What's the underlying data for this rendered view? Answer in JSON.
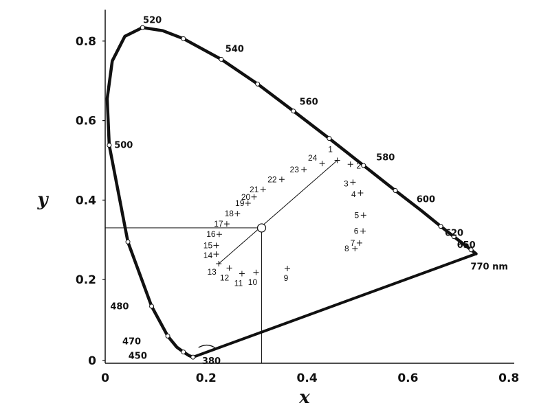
{
  "chart_data": {
    "type": "scatter",
    "title": "",
    "xlabel": "x",
    "ylabel": "y",
    "xlim": [
      0,
      0.8
    ],
    "ylim": [
      0,
      0.8
    ],
    "x_ticks": [
      "0",
      "0.2",
      "0.4",
      "0.6",
      "0.8"
    ],
    "y_ticks": [
      "0",
      "0.2",
      "0.4",
      "0.6",
      "0.8"
    ],
    "grid": false,
    "spectral_locus": [
      {
        "x": 0.174,
        "y": 0.005
      },
      {
        "x": 0.166,
        "y": 0.009
      },
      {
        "x": 0.155,
        "y": 0.018
      },
      {
        "x": 0.142,
        "y": 0.03
      },
      {
        "x": 0.124,
        "y": 0.058
      },
      {
        "x": 0.092,
        "y": 0.133
      },
      {
        "x": 0.045,
        "y": 0.295
      },
      {
        "x": 0.008,
        "y": 0.538
      },
      {
        "x": 0.004,
        "y": 0.655
      },
      {
        "x": 0.014,
        "y": 0.75
      },
      {
        "x": 0.039,
        "y": 0.812
      },
      {
        "x": 0.074,
        "y": 0.834
      },
      {
        "x": 0.114,
        "y": 0.826
      },
      {
        "x": 0.155,
        "y": 0.806
      },
      {
        "x": 0.23,
        "y": 0.754
      },
      {
        "x": 0.302,
        "y": 0.692
      },
      {
        "x": 0.373,
        "y": 0.624
      },
      {
        "x": 0.444,
        "y": 0.555
      },
      {
        "x": 0.512,
        "y": 0.487
      },
      {
        "x": 0.575,
        "y": 0.424
      },
      {
        "x": 0.627,
        "y": 0.373
      },
      {
        "x": 0.665,
        "y": 0.334
      },
      {
        "x": 0.691,
        "y": 0.308
      },
      {
        "x": 0.715,
        "y": 0.285
      },
      {
        "x": 0.725,
        "y": 0.275
      },
      {
        "x": 0.735,
        "y": 0.265
      }
    ],
    "locus_markers": [
      {
        "x": 0.174,
        "y": 0.005
      },
      {
        "x": 0.155,
        "y": 0.018
      },
      {
        "x": 0.124,
        "y": 0.058
      },
      {
        "x": 0.092,
        "y": 0.133
      },
      {
        "x": 0.045,
        "y": 0.295
      },
      {
        "x": 0.008,
        "y": 0.538
      },
      {
        "x": 0.074,
        "y": 0.834
      },
      {
        "x": 0.155,
        "y": 0.806
      },
      {
        "x": 0.23,
        "y": 0.754
      },
      {
        "x": 0.302,
        "y": 0.692
      },
      {
        "x": 0.373,
        "y": 0.624
      },
      {
        "x": 0.444,
        "y": 0.555
      },
      {
        "x": 0.512,
        "y": 0.487
      },
      {
        "x": 0.575,
        "y": 0.424
      },
      {
        "x": 0.665,
        "y": 0.334
      },
      {
        "x": 0.691,
        "y": 0.308
      },
      {
        "x": 0.725,
        "y": 0.275
      }
    ],
    "wavelength_labels": [
      {
        "text": "520",
        "x": 0.075,
        "y": 0.845
      },
      {
        "text": "540",
        "x": 0.238,
        "y": 0.773
      },
      {
        "text": "560",
        "x": 0.385,
        "y": 0.64
      },
      {
        "text": "580",
        "x": 0.537,
        "y": 0.5
      },
      {
        "text": "600",
        "x": 0.617,
        "y": 0.395
      },
      {
        "text": "620",
        "x": 0.673,
        "y": 0.31
      },
      {
        "text": "650",
        "x": 0.697,
        "y": 0.28
      },
      {
        "text": "770 nm",
        "x": 0.724,
        "y": 0.225
      },
      {
        "text": "500",
        "x": 0.018,
        "y": 0.531
      },
      {
        "text": "480",
        "x": 0.01,
        "y": 0.125
      },
      {
        "text": "470",
        "x": 0.034,
        "y": 0.037
      },
      {
        "text": "450",
        "x": 0.046,
        "y": 0.001
      },
      {
        "text": "380",
        "x": 0.192,
        "y": -0.012
      }
    ],
    "white_point": {
      "x": 0.31,
      "y": 0.33
    },
    "points": [
      {
        "label": "1",
        "x": 0.46,
        "y": 0.5
      },
      {
        "label": "2",
        "x": 0.486,
        "y": 0.49
      },
      {
        "label": "3",
        "x": 0.491,
        "y": 0.445
      },
      {
        "label": "4",
        "x": 0.506,
        "y": 0.418
      },
      {
        "label": "5",
        "x": 0.512,
        "y": 0.362
      },
      {
        "label": "6",
        "x": 0.511,
        "y": 0.322
      },
      {
        "label": "7",
        "x": 0.504,
        "y": 0.292
      },
      {
        "label": "8",
        "x": 0.495,
        "y": 0.278
      },
      {
        "label": "9",
        "x": 0.361,
        "y": 0.228
      },
      {
        "label": "10",
        "x": 0.299,
        "y": 0.218
      },
      {
        "label": "11",
        "x": 0.271,
        "y": 0.215
      },
      {
        "label": "12",
        "x": 0.246,
        "y": 0.229
      },
      {
        "label": "13",
        "x": 0.225,
        "y": 0.24
      },
      {
        "label": "14",
        "x": 0.22,
        "y": 0.264
      },
      {
        "label": "15",
        "x": 0.22,
        "y": 0.286
      },
      {
        "label": "16",
        "x": 0.226,
        "y": 0.314
      },
      {
        "label": "17",
        "x": 0.241,
        "y": 0.34
      },
      {
        "label": "18",
        "x": 0.262,
        "y": 0.366
      },
      {
        "label": "19",
        "x": 0.283,
        "y": 0.392
      },
      {
        "label": "20",
        "x": 0.295,
        "y": 0.408
      },
      {
        "label": "21",
        "x": 0.313,
        "y": 0.427
      },
      {
        "label": "22",
        "x": 0.35,
        "y": 0.452
      },
      {
        "label": "23",
        "x": 0.394,
        "y": 0.477
      },
      {
        "label": "24",
        "x": 0.43,
        "y": 0.492
      }
    ]
  }
}
